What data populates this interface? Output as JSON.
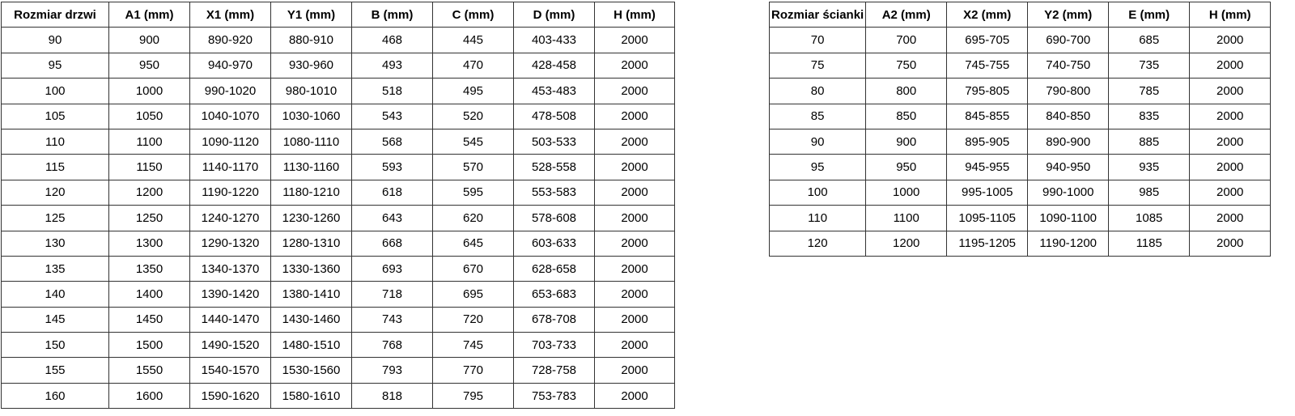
{
  "colors": {
    "background": "#ffffff",
    "border": "#333333",
    "text": "#000000"
  },
  "tables": [
    {
      "name": "door-sizes",
      "headers": [
        "Rozmiar drzwi",
        "A1 (mm)",
        "X1 (mm)",
        "Y1 (mm)",
        "B (mm)",
        "C (mm)",
        "D (mm)",
        "H (mm)"
      ],
      "rows": [
        [
          "90",
          "900",
          "890-920",
          "880-910",
          "468",
          "445",
          "403-433",
          "2000"
        ],
        [
          "95",
          "950",
          "940-970",
          "930-960",
          "493",
          "470",
          "428-458",
          "2000"
        ],
        [
          "100",
          "1000",
          "990-1020",
          "980-1010",
          "518",
          "495",
          "453-483",
          "2000"
        ],
        [
          "105",
          "1050",
          "1040-1070",
          "1030-1060",
          "543",
          "520",
          "478-508",
          "2000"
        ],
        [
          "110",
          "1100",
          "1090-1120",
          "1080-1110",
          "568",
          "545",
          "503-533",
          "2000"
        ],
        [
          "115",
          "1150",
          "1140-1170",
          "1130-1160",
          "593",
          "570",
          "528-558",
          "2000"
        ],
        [
          "120",
          "1200",
          "1190-1220",
          "1180-1210",
          "618",
          "595",
          "553-583",
          "2000"
        ],
        [
          "125",
          "1250",
          "1240-1270",
          "1230-1260",
          "643",
          "620",
          "578-608",
          "2000"
        ],
        [
          "130",
          "1300",
          "1290-1320",
          "1280-1310",
          "668",
          "645",
          "603-633",
          "2000"
        ],
        [
          "135",
          "1350",
          "1340-1370",
          "1330-1360",
          "693",
          "670",
          "628-658",
          "2000"
        ],
        [
          "140",
          "1400",
          "1390-1420",
          "1380-1410",
          "718",
          "695",
          "653-683",
          "2000"
        ],
        [
          "145",
          "1450",
          "1440-1470",
          "1430-1460",
          "743",
          "720",
          "678-708",
          "2000"
        ],
        [
          "150",
          "1500",
          "1490-1520",
          "1480-1510",
          "768",
          "745",
          "703-733",
          "2000"
        ],
        [
          "155",
          "1550",
          "1540-1570",
          "1530-1560",
          "793",
          "770",
          "728-758",
          "2000"
        ],
        [
          "160",
          "1600",
          "1590-1620",
          "1580-1610",
          "818",
          "795",
          "753-783",
          "2000"
        ]
      ]
    },
    {
      "name": "wall-sizes",
      "headers": [
        "Rozmiar ścianki",
        "A2 (mm)",
        "X2 (mm)",
        "Y2 (mm)",
        "E (mm)",
        "H (mm)"
      ],
      "rows": [
        [
          "70",
          "700",
          "695-705",
          "690-700",
          "685",
          "2000"
        ],
        [
          "75",
          "750",
          "745-755",
          "740-750",
          "735",
          "2000"
        ],
        [
          "80",
          "800",
          "795-805",
          "790-800",
          "785",
          "2000"
        ],
        [
          "85",
          "850",
          "845-855",
          "840-850",
          "835",
          "2000"
        ],
        [
          "90",
          "900",
          "895-905",
          "890-900",
          "885",
          "2000"
        ],
        [
          "95",
          "950",
          "945-955",
          "940-950",
          "935",
          "2000"
        ],
        [
          "100",
          "1000",
          "995-1005",
          "990-1000",
          "985",
          "2000"
        ],
        [
          "110",
          "1100",
          "1095-1105",
          "1090-1100",
          "1085",
          "2000"
        ],
        [
          "120",
          "1200",
          "1195-1205",
          "1190-1200",
          "1185",
          "2000"
        ]
      ]
    }
  ]
}
